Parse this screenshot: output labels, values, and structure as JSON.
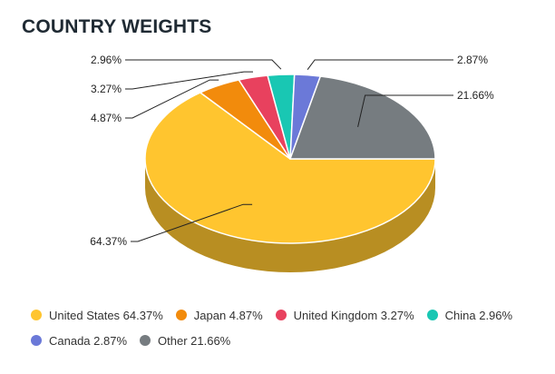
{
  "chart_data": {
    "type": "pie",
    "title": "COUNTRY WEIGHTS",
    "series": [
      {
        "name": "United States",
        "value": 64.37,
        "label": "64.37%",
        "color": "#ffc52f"
      },
      {
        "name": "Japan",
        "value": 4.87,
        "label": "4.87%",
        "color": "#f28b0c"
      },
      {
        "name": "United Kingdom",
        "value": 3.27,
        "label": "3.27%",
        "color": "#e8415e"
      },
      {
        "name": "China",
        "value": 2.96,
        "label": "2.96%",
        "color": "#19c7b3"
      },
      {
        "name": "Canada",
        "value": 2.87,
        "label": "2.87%",
        "color": "#6b79d8"
      },
      {
        "name": "Other",
        "value": 21.66,
        "label": "21.66%",
        "color": "#767c80"
      }
    ],
    "legend": {
      "placement": "bottom",
      "entries": [
        "United States 64.37%",
        "Japan 4.87%",
        "United Kingdom 3.27%",
        "China 2.96%",
        "Canada 2.87%",
        "Other 21.66%"
      ]
    }
  }
}
